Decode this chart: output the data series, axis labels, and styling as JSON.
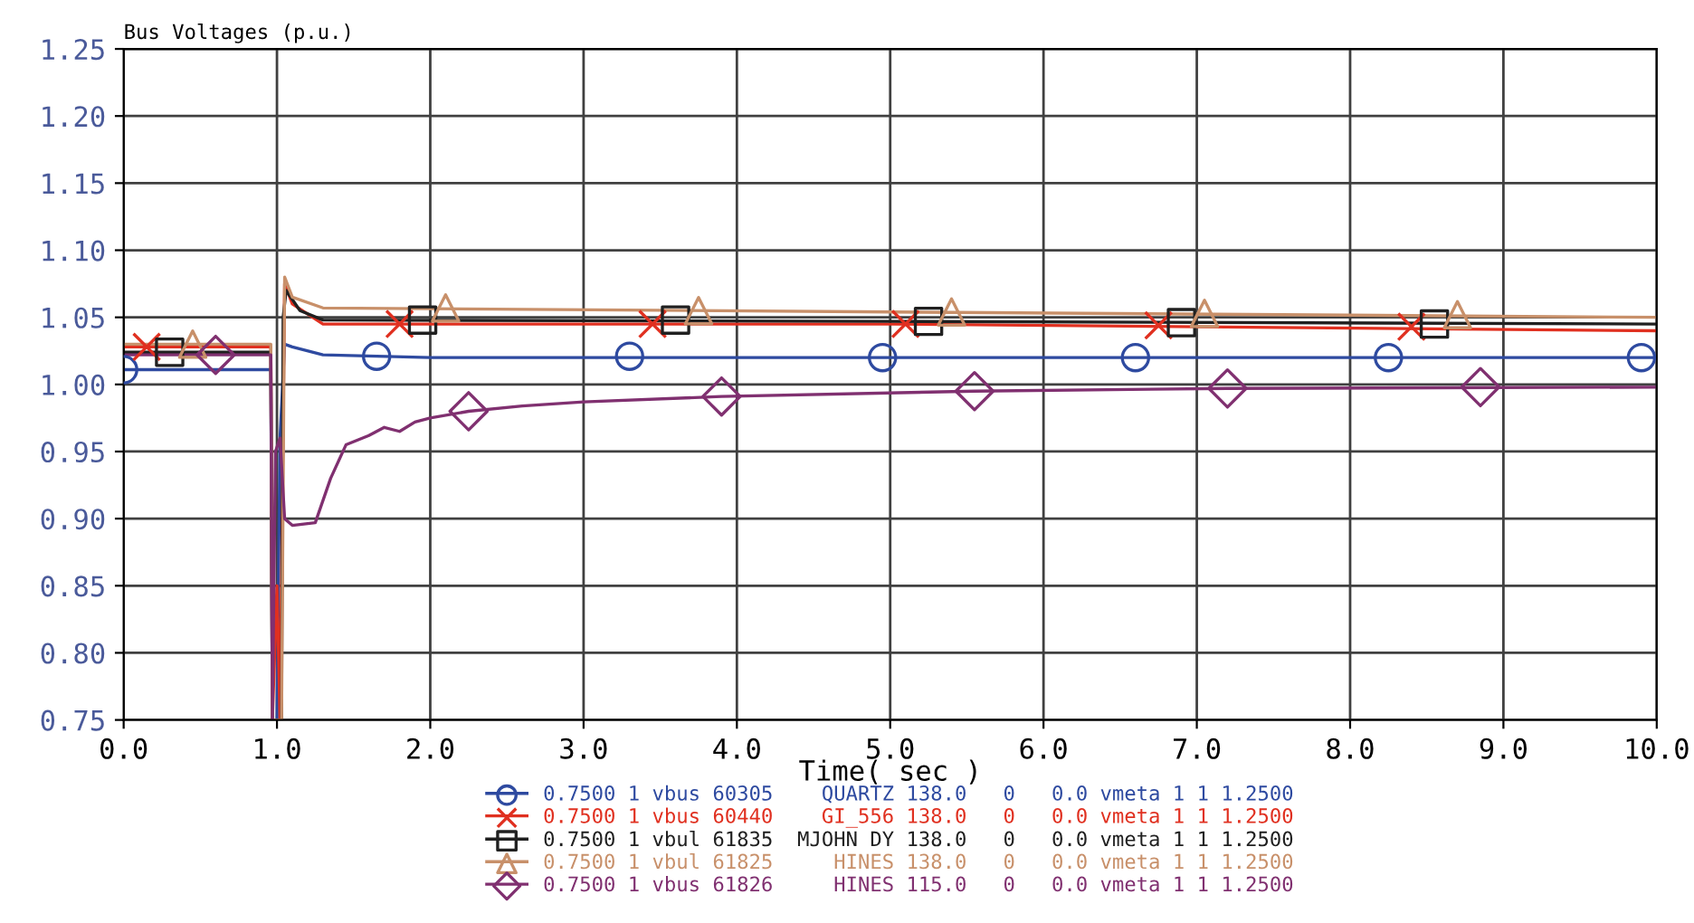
{
  "chart_data": {
    "type": "line",
    "title": "Bus Voltages (p.u.)",
    "xlabel": "Time( sec )",
    "xlim": [
      0,
      10
    ],
    "xticks": [
      {
        "value": 0,
        "label": "0.0"
      },
      {
        "value": 1,
        "label": "1.0"
      },
      {
        "value": 2,
        "label": "2.0"
      },
      {
        "value": 3,
        "label": "3.0"
      },
      {
        "value": 4,
        "label": "4.0"
      },
      {
        "value": 5,
        "label": "5.0"
      },
      {
        "value": 6,
        "label": "6.0"
      },
      {
        "value": 7,
        "label": "7.0"
      },
      {
        "value": 8,
        "label": "8.0"
      },
      {
        "value": 9,
        "label": "9.0"
      },
      {
        "value": 10,
        "label": "10.0"
      }
    ],
    "ylim": [
      0.75,
      1.25
    ],
    "yticks": [
      {
        "value": 0.75,
        "label": "0.75"
      },
      {
        "value": 0.8,
        "label": "0.80"
      },
      {
        "value": 0.85,
        "label": "0.85"
      },
      {
        "value": 0.9,
        "label": "0.90"
      },
      {
        "value": 0.95,
        "label": "0.95"
      },
      {
        "value": 1.0,
        "label": "1.00"
      },
      {
        "value": 1.05,
        "label": "1.05"
      },
      {
        "value": 1.1,
        "label": "1.10"
      },
      {
        "value": 1.15,
        "label": "1.15"
      },
      {
        "value": 1.2,
        "label": "1.20"
      },
      {
        "value": 1.25,
        "label": "1.25"
      }
    ],
    "grid": true,
    "legend": "bottom",
    "line_style": "solid",
    "series": [
      {
        "name": "0.7500 1 vbus 60305    QUARTZ 138.0   0   0.0 vmeta 1 1 1.2500",
        "color": "#2e4aa0",
        "x": [
          0,
          0.96,
          0.97,
          1.0,
          1.02,
          1.05,
          1.1,
          1.3,
          2,
          4,
          10
        ],
        "values": [
          1.011,
          1.011,
          0.75,
          0.75,
          0.96,
          1.03,
          1.028,
          1.022,
          1.02,
          1.02,
          1.02
        ]
      },
      {
        "name": "0.7500 1 vbus 60440    GI_556 138.0   0   0.0 vmeta 1 1 1.2500",
        "color": "#e03020",
        "x": [
          0,
          0.96,
          0.97,
          1.0,
          1.02,
          1.05,
          1.1,
          1.3,
          5,
          10
        ],
        "values": [
          1.028,
          1.028,
          0.75,
          0.85,
          0.75,
          1.075,
          1.06,
          1.045,
          1.045,
          1.04
        ]
      },
      {
        "name": "0.7500 1 vbul 61835  MJOHN DY 138.0   0   0.0 vmeta 1 1 1.2500",
        "color": "#202020",
        "x": [
          0,
          0.96,
          0.97,
          1.03,
          1.04,
          1.06,
          1.15,
          1.3,
          5,
          10
        ],
        "values": [
          1.024,
          1.024,
          0.75,
          0.75,
          1.05,
          1.07,
          1.055,
          1.048,
          1.047,
          1.045
        ]
      },
      {
        "name": "0.7500 1 vbul 61825     HINES 138.0   0   0.0 vmeta 1 1 1.2500",
        "color": "#c8906a",
        "x": [
          0,
          0.96,
          0.97,
          1.03,
          1.05,
          1.1,
          1.3,
          5,
          10
        ],
        "values": [
          1.03,
          1.03,
          0.75,
          0.75,
          1.08,
          1.065,
          1.057,
          1.054,
          1.05
        ]
      },
      {
        "name": "0.7500 1 vbus 61826     HINES 115.0   0   0.0 vmeta 1 1 1.2500",
        "color": "#803070",
        "x": [
          0,
          0.96,
          0.97,
          0.99,
          1.02,
          1.05,
          1.1,
          1.25,
          1.35,
          1.45,
          1.6,
          1.7,
          1.8,
          1.9,
          2.0,
          2.25,
          2.6,
          3.0,
          3.9,
          5.55,
          7.2,
          10
        ],
        "values": [
          1.022,
          1.022,
          0.75,
          0.95,
          0.96,
          0.9,
          0.895,
          0.897,
          0.93,
          0.955,
          0.962,
          0.968,
          0.965,
          0.972,
          0.975,
          0.98,
          0.984,
          0.987,
          0.991,
          0.995,
          0.997,
          0.998
        ]
      },
      {
        "type": "scatter",
        "color": "#2e4aa0",
        "marker": "circle",
        "x": [
          0,
          1.65,
          3.3,
          4.95,
          6.6,
          8.25,
          9.9
        ],
        "values": [
          1.011,
          1.021,
          1.021,
          1.02,
          1.02,
          1.02,
          1.02
        ]
      },
      {
        "type": "scatter",
        "color": "#e03020",
        "marker": "cross",
        "x": [
          0.15,
          1.8,
          3.45,
          5.1,
          6.75,
          8.4
        ],
        "values": [
          1.028,
          1.045,
          1.045,
          1.045,
          1.044,
          1.043
        ]
      },
      {
        "type": "scatter",
        "color": "#202020",
        "marker": "square",
        "x": [
          0.3,
          1.95,
          3.6,
          5.25,
          6.9,
          8.55
        ],
        "values": [
          1.024,
          1.048,
          1.048,
          1.047,
          1.046,
          1.045
        ]
      },
      {
        "type": "scatter",
        "color": "#c8906a",
        "marker": "triangle",
        "x": [
          0.45,
          2.1,
          3.75,
          5.4,
          7.05,
          8.7
        ],
        "values": [
          1.03,
          1.057,
          1.055,
          1.054,
          1.053,
          1.052
        ]
      },
      {
        "type": "scatter",
        "color": "#803070",
        "marker": "diamond",
        "x": [
          0.6,
          2.25,
          3.9,
          5.55,
          7.2,
          8.85
        ],
        "values": [
          1.022,
          0.98,
          0.991,
          0.995,
          0.997,
          0.998
        ]
      }
    ]
  }
}
